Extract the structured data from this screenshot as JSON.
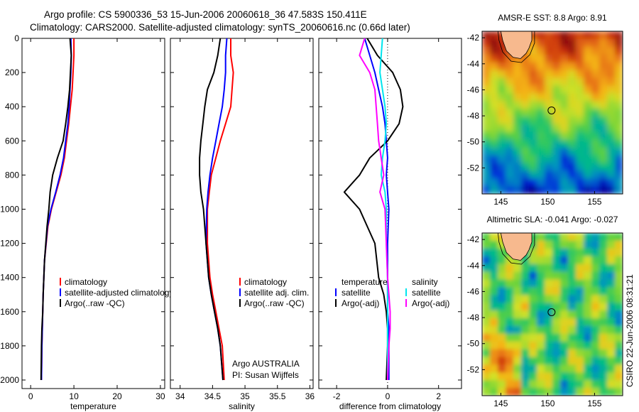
{
  "header": {
    "line1": "Argo profile: CS 5900336_53 15-Jun-2006 20060618_36 47.583S 150.411E",
    "line2": "Climatology: CARS2000. Satellite-adjusted climatology: synTS_20060616.nc (0.66d later)"
  },
  "footer": {
    "institution": "Argo AUSTRALIA",
    "pi": "PI: Susan Wijffels",
    "stamp": "CSIRO 22-Jun-2006 08:31:21"
  },
  "colors": {
    "climatology": "#ff0000",
    "satellite": "#0000ff",
    "argo": "#000000",
    "sal_satellite": "#00e5ee",
    "sal_argo": "#ff00ff",
    "land": "#f7b98e"
  },
  "chart_data": [
    {
      "type": "line",
      "id": "temperature",
      "xlabel": "temperature",
      "ylabel": "",
      "xlim": [
        -2,
        31
      ],
      "ylim": [
        2050,
        0
      ],
      "xticks": [
        0,
        10,
        20,
        30
      ],
      "yticks": [
        0,
        200,
        400,
        600,
        800,
        1000,
        1200,
        1400,
        1600,
        1800,
        2000
      ],
      "legend": [
        "climatology",
        "satellite-adjusted climatology",
        "Argo(..raw -QC)"
      ],
      "series": [
        {
          "name": "climatology",
          "color": "#ff0000",
          "x": [
            10.0,
            10.0,
            9.8,
            9.6,
            9.2,
            8.8,
            8.3,
            7.8,
            7.0,
            5.9,
            4.8,
            4.0,
            3.2,
            2.9,
            2.8,
            2.7,
            2.6,
            2.5
          ],
          "y": [
            0,
            100,
            200,
            300,
            400,
            500,
            600,
            700,
            800,
            900,
            1000,
            1100,
            1300,
            1500,
            1600,
            1700,
            1800,
            2000
          ]
        },
        {
          "name": "satellite-adjusted climatology",
          "color": "#0000ff",
          "x": [
            9.3,
            9.4,
            9.3,
            9.1,
            8.9,
            8.6,
            8.1,
            7.6,
            6.8,
            5.8,
            4.7,
            3.9,
            3.2,
            2.9,
            2.8,
            2.7,
            2.6,
            2.5
          ],
          "y": [
            0,
            100,
            200,
            300,
            400,
            500,
            600,
            700,
            800,
            900,
            1000,
            1100,
            1300,
            1500,
            1600,
            1700,
            1800,
            2000
          ]
        },
        {
          "name": "Argo(..raw -QC)",
          "color": "#000000",
          "x": [
            9.1,
            9.4,
            9.2,
            9.0,
            8.6,
            8.1,
            7.5,
            6.2,
            5.1,
            4.5,
            4.2,
            3.8,
            3.2,
            2.9,
            2.8,
            2.6,
            2.5,
            2.4
          ],
          "y": [
            0,
            100,
            200,
            300,
            400,
            500,
            600,
            700,
            800,
            900,
            1000,
            1100,
            1300,
            1500,
            1600,
            1700,
            1800,
            2000
          ]
        }
      ]
    },
    {
      "type": "line",
      "id": "salinity",
      "xlabel": "salinity",
      "ylabel": "",
      "xlim": [
        33.85,
        36.05
      ],
      "ylim": [
        2050,
        0
      ],
      "xticks": [
        34,
        34.5,
        35,
        35.5,
        36
      ],
      "legend": [
        "climatology",
        "satellite adj. clim.",
        "Argo(..raw -QC)"
      ],
      "series": [
        {
          "name": "climatology",
          "color": "#ff0000",
          "x": [
            34.78,
            34.78,
            34.82,
            34.8,
            34.78,
            34.7,
            34.62,
            34.55,
            34.48,
            34.45,
            34.42,
            34.42,
            34.46,
            34.5,
            34.55,
            34.6,
            34.65,
            34.68
          ],
          "y": [
            0,
            100,
            200,
            300,
            400,
            500,
            600,
            700,
            800,
            900,
            1000,
            1200,
            1400,
            1500,
            1600,
            1700,
            1800,
            2000
          ]
        },
        {
          "name": "satellite adj. clim.",
          "color": "#0000ff",
          "x": [
            34.72,
            34.7,
            34.7,
            34.68,
            34.65,
            34.6,
            34.55,
            34.5,
            34.46,
            34.43,
            34.41,
            34.4,
            34.44,
            34.48,
            34.53,
            34.58,
            34.62,
            34.66
          ],
          "y": [
            0,
            100,
            200,
            300,
            400,
            500,
            600,
            700,
            800,
            900,
            1000,
            1200,
            1400,
            1500,
            1600,
            1700,
            1800,
            2000
          ]
        },
        {
          "name": "Argo(..raw -QC)",
          "color": "#000000",
          "x": [
            34.62,
            34.58,
            34.52,
            34.42,
            34.38,
            34.35,
            34.32,
            34.3,
            34.3,
            34.32,
            34.36,
            34.4,
            34.44,
            34.48,
            34.53,
            34.58,
            34.62,
            34.66
          ],
          "y": [
            0,
            100,
            200,
            300,
            400,
            500,
            600,
            700,
            800,
            900,
            1000,
            1200,
            1400,
            1500,
            1600,
            1700,
            1800,
            2000
          ]
        }
      ]
    },
    {
      "type": "line",
      "id": "difference",
      "xlabel": "difference from climatology",
      "ylabel": "",
      "xlim": [
        -2.7,
        2.9
      ],
      "ylim": [
        2050,
        0
      ],
      "xticks": [
        -2,
        0,
        2
      ],
      "legend": [
        "temperature",
        "satellite",
        "Argo(-adj)",
        "salinity",
        "satellite",
        "Argo(-adj)"
      ],
      "series": [
        {
          "name": "temperature satellite",
          "color": "#0000ff",
          "x": [
            -0.9,
            -0.7,
            -0.5,
            -0.35,
            -0.2,
            -0.1,
            -0.05,
            0.0,
            -0.05,
            0.0,
            0.05,
            0.0,
            0.0,
            0.0,
            0.0,
            0.05,
            0.05,
            0.05
          ],
          "y": [
            0,
            100,
            200,
            300,
            400,
            500,
            600,
            700,
            800,
            900,
            1000,
            1200,
            1400,
            1500,
            1600,
            1700,
            1800,
            2000
          ]
        },
        {
          "name": "temperature Argo(-adj)",
          "color": "#000000",
          "x": [
            -0.8,
            -0.4,
            0.2,
            0.5,
            0.6,
            0.45,
            0.0,
            -0.7,
            -1.1,
            -1.7,
            -1.1,
            -0.5,
            -0.35,
            -0.15,
            -0.05,
            0.0,
            0.0,
            -0.05
          ],
          "y": [
            0,
            100,
            200,
            300,
            400,
            500,
            600,
            700,
            800,
            900,
            1000,
            1200,
            1400,
            1500,
            1600,
            1700,
            1800,
            2000
          ]
        },
        {
          "name": "salinity satellite",
          "color": "#00e5ee",
          "x": [
            -0.2,
            -0.25,
            -0.3,
            -0.2,
            -0.1,
            -0.05,
            -0.1,
            -0.2,
            -0.25,
            -0.1,
            -0.05,
            -0.05,
            0.0,
            0.0,
            0.0,
            0.0,
            0.0,
            0.0
          ],
          "y": [
            0,
            100,
            200,
            300,
            400,
            500,
            600,
            700,
            800,
            900,
            1000,
            1200,
            1400,
            1500,
            1600,
            1700,
            1800,
            2000
          ]
        },
        {
          "name": "salinity Argo(-adj)",
          "color": "#ff00ff",
          "x": [
            -0.9,
            -1.1,
            -0.7,
            -0.5,
            -0.45,
            -0.4,
            -0.35,
            -0.25,
            -0.15,
            -0.3,
            -0.1,
            -0.05,
            0.0,
            0.05,
            0.1,
            0.1,
            0.05,
            0.0
          ],
          "y": [
            0,
            100,
            200,
            300,
            400,
            500,
            600,
            700,
            800,
            900,
            1000,
            1200,
            1400,
            1500,
            1600,
            1700,
            1800,
            2000
          ]
        }
      ]
    },
    {
      "type": "heatmap",
      "id": "sst",
      "title": "AMSR-E SST: 8.8 Argo: 8.91",
      "xlim": [
        143,
        158
      ],
      "ylim": [
        -54,
        -41.5
      ],
      "xticks": [
        145,
        150,
        155
      ],
      "yticks": [
        -42,
        -44,
        -46,
        -48,
        -50,
        -52
      ],
      "marker": {
        "lon": 150.411,
        "lat": -47.583
      }
    },
    {
      "type": "heatmap",
      "id": "sla",
      "title": "Altimetric SLA: -0.041 Argo: -0.027",
      "xlim": [
        143,
        158
      ],
      "ylim": [
        -54,
        -41.5
      ],
      "xticks": [
        145,
        150,
        155
      ],
      "yticks": [
        -42,
        -44,
        -46,
        -48,
        -50,
        -52
      ],
      "marker": {
        "lon": 150.411,
        "lat": -47.583
      }
    }
  ]
}
